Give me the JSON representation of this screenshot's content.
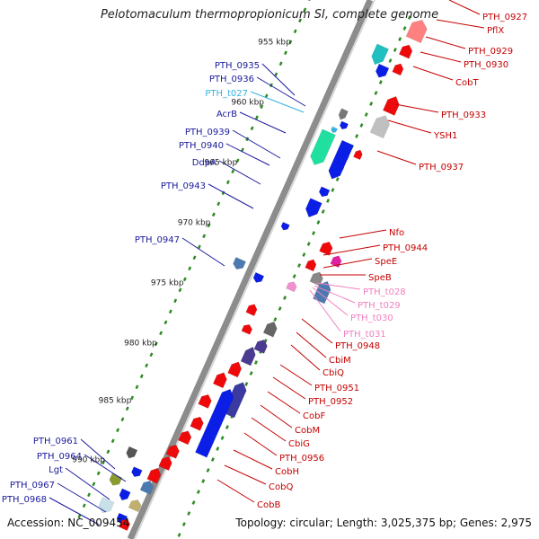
{
  "title": "Pelotomaculum thermopropionicum SI, complete genome",
  "footer": {
    "accession": "Accession: NC_009454",
    "topology": "Topology: circular; Length: 3,025,375 bp; Genes: 2,975"
  },
  "colors": {
    "backbone": "#8c8c8c",
    "tick": "#2e8b22",
    "label_blue": "#1a1a9c",
    "label_red": "#c40000",
    "label_cyan": "#33b3e0",
    "label_pink": "#f080c0",
    "gene_blue": "#0a1ee6",
    "gene_red": "#ee0a0a"
  },
  "kbp_ticks": [
    "955 kbp",
    "960 kbp",
    "965 kbp",
    "970 kbp",
    "975 kbp",
    "980 kbp",
    "985 kbp",
    "990 kbp"
  ],
  "left_labels": [
    {
      "text": "PTH_0935",
      "color": "blue"
    },
    {
      "text": "PTH_0936",
      "color": "blue"
    },
    {
      "text": "PTH_t027",
      "color": "cyan"
    },
    {
      "text": "AcrB",
      "color": "blue"
    },
    {
      "text": "PTH_0939",
      "color": "blue"
    },
    {
      "text": "PTH_0940",
      "color": "blue"
    },
    {
      "text": "DdpA",
      "color": "blue"
    },
    {
      "text": "PTH_0943",
      "color": "blue"
    },
    {
      "text": "PTH_0947",
      "color": "blue"
    },
    {
      "text": "PTH_0961",
      "color": "blue"
    },
    {
      "text": "PTH_0964",
      "color": "blue"
    },
    {
      "text": "Lgt",
      "color": "blue"
    },
    {
      "text": "PTH_0967",
      "color": "blue"
    },
    {
      "text": "PTH_0968",
      "color": "blue"
    }
  ],
  "right_labels": [
    {
      "text": "PTH_0927",
      "color": "red"
    },
    {
      "text": "PflX",
      "color": "red"
    },
    {
      "text": "PTH_0929",
      "color": "red"
    },
    {
      "text": "PTH_0930",
      "color": "red"
    },
    {
      "text": "CobT",
      "color": "red"
    },
    {
      "text": "PTH_0933",
      "color": "red"
    },
    {
      "text": "YSH1",
      "color": "red"
    },
    {
      "text": "PTH_0937",
      "color": "red"
    },
    {
      "text": "Nfo",
      "color": "red"
    },
    {
      "text": "PTH_0944",
      "color": "red"
    },
    {
      "text": "SpeE",
      "color": "red"
    },
    {
      "text": "SpeB",
      "color": "red"
    },
    {
      "text": "PTH_t028",
      "color": "pink"
    },
    {
      "text": "PTH_t029",
      "color": "pink"
    },
    {
      "text": "PTH_t030",
      "color": "pink"
    },
    {
      "text": "PTH_t031",
      "color": "pink"
    },
    {
      "text": "PTH_0948",
      "color": "red"
    },
    {
      "text": "CbiM",
      "color": "red"
    },
    {
      "text": "CbiQ",
      "color": "red"
    },
    {
      "text": "PTH_0951",
      "color": "red"
    },
    {
      "text": "PTH_0952",
      "color": "red"
    },
    {
      "text": "CobF",
      "color": "red"
    },
    {
      "text": "CobM",
      "color": "red"
    },
    {
      "text": "CbiG",
      "color": "red"
    },
    {
      "text": "PTH_0956",
      "color": "red"
    },
    {
      "text": "CobH",
      "color": "red"
    },
    {
      "text": "CobQ",
      "color": "red"
    },
    {
      "text": "CobB",
      "color": "red"
    }
  ]
}
